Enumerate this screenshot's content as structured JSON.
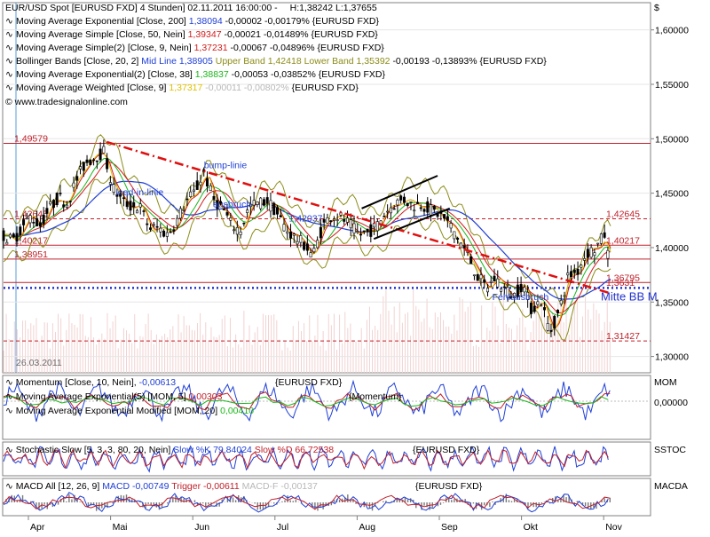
{
  "header": {
    "title": "EUR/USD Spot [EURUSD FXD]  4 Stunden] 02.11.2011 16:00:00 -",
    "hl": "H:1,38242 L:1,37655",
    "currency_symbol": "$",
    "source": "www.tradesignalonline.com"
  },
  "legend": [
    {
      "text": "Moving Average Exponential [Close, 200]",
      "value": "1,38094",
      "change": "-0,00002 -0,00179%",
      "ticker": "{EURUSD FXD}",
      "color": "#1f3fd6"
    },
    {
      "text": "Moving Average Simple [Close, 50, Nein]",
      "value": "1,39347",
      "change": "-0,00021 -0,01489%",
      "ticker": "{EURUSD FXD}",
      "color": "#d11c1c"
    },
    {
      "text": "Moving Average Simple(2) [Close, 9, Nein]",
      "value": "1,37231",
      "change": "-0,00067 -0,04896%",
      "ticker": "{EURUSD FXD}",
      "color": "#d11c1c"
    },
    {
      "text": "Bollinger Bands [Close, 20, 2]",
      "value": "Mid Line 1,38905",
      "extra1": "Upper Band 1,42418",
      "extra2": "Lower Band 1,35392",
      "change": "-0,00193 -0,13893%",
      "ticker": "{EURUSD FXD}",
      "color": "#1f3fd6",
      "color2": "#8c8c1a"
    },
    {
      "text": "Moving Average Exponential(2) [Close, 38]",
      "value": "1,38837",
      "change": "-0,00053 -0,03852%",
      "ticker": "{EURUSD FXD}",
      "color": "#19b619"
    },
    {
      "text": "Moving Average Weighted [Close, 9]",
      "value": "1,37317",
      "change": "-0,00011 -0,00802%",
      "ticker": "{EURUSD FXD}",
      "color": "#e0c000"
    }
  ],
  "chart_data": {
    "type": "line",
    "title": "EUR/USD Spot [EURUSD FXD] 4 Stunden",
    "xlabel": "",
    "ylabel": "$",
    "months": [
      "Apr",
      "Mai",
      "Jun",
      "Jul",
      "Aug",
      "Sep",
      "Okt",
      "Nov"
    ],
    "price_ticks": [
      "1,60000",
      "1,55000",
      "1,50000",
      "1,45000",
      "1,40000",
      "1,35000",
      "1,30000"
    ],
    "price_tick_values": [
      1.6,
      1.55,
      1.5,
      1.45,
      1.4,
      1.35,
      1.3
    ],
    "ylim": [
      1.285,
      1.625
    ],
    "x_domain": [
      0,
      100
    ],
    "date_marker": "26.03.2011",
    "levels": [
      {
        "label": "1,49579",
        "value": 1.49579,
        "style": "solid",
        "color": "#c0202a"
      },
      {
        "label": "1,42645",
        "value": 1.42645,
        "style": "dashed",
        "color": "#c0202a"
      },
      {
        "label": "1,40217",
        "value": 1.40217,
        "style": "solid",
        "color": "#c0202a"
      },
      {
        "label": "1,38951",
        "value": 1.38951,
        "style": "solid",
        "color": "#c0202a"
      },
      {
        "label": "1,36795",
        "value": 1.36795,
        "style": "solid",
        "color": "#c0202a"
      },
      {
        "label": "1,31427",
        "value": 1.31427,
        "style": "dashed",
        "color": "#c0202a"
      }
    ],
    "level_labels_left": [
      {
        "label": "1,49579",
        "value": 1.49579
      },
      {
        "label": "1,42645",
        "value": 1.42645
      },
      {
        "label": "1,40217",
        "value": 1.40217
      },
      {
        "label": "1,38951",
        "value": 1.38951
      }
    ],
    "level_labels_right": [
      {
        "label": "1,42645",
        "value": 1.42645
      },
      {
        "label": "1,40217",
        "value": 1.40217
      },
      {
        "label": "1,36795",
        "value": 1.36795
      },
      {
        "label": "1,3631",
        "value": 1.3631
      },
      {
        "label": "1,31427",
        "value": 1.31427
      }
    ],
    "mid_label": {
      "label": "1,42037",
      "x": 47,
      "value": 1.424
    },
    "mitte_bb": {
      "label": "Mitte BB M",
      "value": 1.363
    },
    "annotations": [
      {
        "text": "bump-linie",
        "x": 33,
        "value": 1.473
      },
      {
        "text": "lead-in-linie",
        "x": 18.5,
        "value": 1.448
      },
      {
        "text": "Fehlausbruch",
        "x": 80.5,
        "value": 1.352
      },
      {
        "text": "ausbruch",
        "x": 34.5,
        "value": 1.437
      }
    ],
    "downtrend_line": [
      [
        17,
        1.497
      ],
      [
        100,
        1.358
      ]
    ],
    "channel_upper": [
      [
        59,
        1.436
      ],
      [
        71.5,
        1.466
      ]
    ],
    "channel_lower": [
      [
        61,
        1.408
      ],
      [
        73.5,
        1.436
      ]
    ],
    "series": [
      {
        "name": "EURUSD",
        "x": [
          0,
          1.5,
          3,
          4.5,
          6,
          7.5,
          9,
          10.5,
          12,
          13.5,
          15,
          16.5,
          18,
          19.5,
          21,
          22.5,
          24,
          25.5,
          27,
          28.5,
          30,
          31.5,
          33,
          34.5,
          36,
          37.5,
          39,
          40.5,
          42,
          43.5,
          45,
          46.5,
          48,
          49.5,
          51,
          52.5,
          54,
          55.5,
          57,
          58.5,
          60,
          61.5,
          63,
          64.5,
          66,
          67.5,
          69,
          70.5,
          72,
          73.5,
          75,
          76.5,
          78,
          79.5,
          81,
          82.5,
          84,
          85.5,
          87,
          88.5,
          90,
          91.5,
          93,
          94.5,
          96,
          97.5,
          99,
          100
        ],
        "values": [
          1.411,
          1.406,
          1.418,
          1.429,
          1.42,
          1.436,
          1.446,
          1.441,
          1.462,
          1.478,
          1.483,
          1.488,
          1.455,
          1.443,
          1.438,
          1.437,
          1.418,
          1.418,
          1.412,
          1.424,
          1.442,
          1.451,
          1.469,
          1.445,
          1.437,
          1.421,
          1.416,
          1.438,
          1.441,
          1.443,
          1.432,
          1.417,
          1.409,
          1.403,
          1.393,
          1.419,
          1.43,
          1.428,
          1.421,
          1.412,
          1.414,
          1.42,
          1.433,
          1.441,
          1.444,
          1.439,
          1.44,
          1.434,
          1.43,
          1.421,
          1.407,
          1.393,
          1.374,
          1.363,
          1.372,
          1.362,
          1.355,
          1.367,
          1.343,
          1.352,
          1.322,
          1.341,
          1.374,
          1.378,
          1.395,
          1.399,
          1.412,
          1.378
        ]
      }
    ],
    "indicators": {
      "momentum": {
        "label": "Momentum [Close, 10, Nein]",
        "value": "-0,00613",
        "ticker": "{EURUSD FXD}",
        "line2": "Moving Average Exponential(5) [MOM, 5]",
        "line2_value": "0,00303",
        "line3": "Moving Average Exponential Modified [MOM, 20]",
        "line3_value": "0,00410",
        "right_label": "MOM",
        "zero_tick": "0,00000",
        "sub_ticker": "{Momentum}"
      },
      "stochastic": {
        "label": "Stochastic Slow [5, 3, 3, 80, 20, Nein]",
        "k": "Slow %K 79,84024",
        "d": "Slow %D 66,72538",
        "ticker": "{EURUSD FXD}",
        "right_label": "SSTOC"
      },
      "macd": {
        "label": "MACD All [12, 26, 9]",
        "macd": "MACD -0,00749",
        "trigger": "Trigger -0,00611",
        "hist": "MACD-F -0,00137",
        "ticker": "{EURUSD FXD}",
        "right_label": "MACDA"
      }
    }
  }
}
